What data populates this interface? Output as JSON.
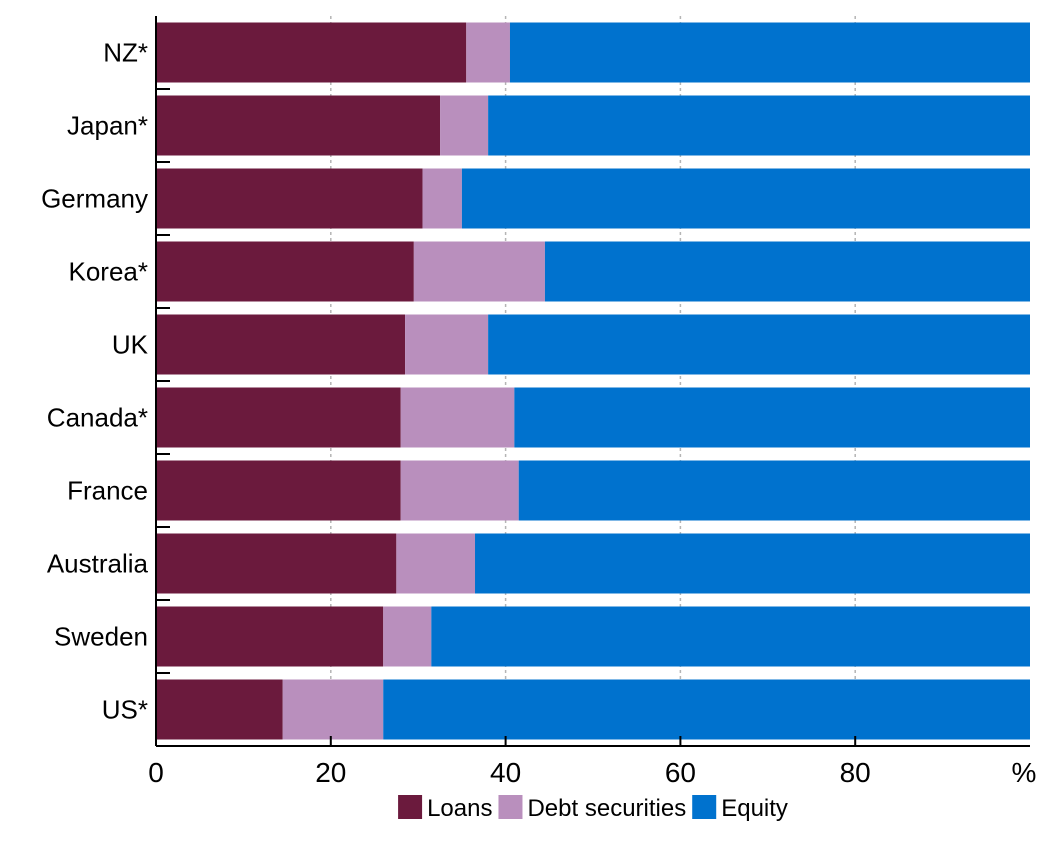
{
  "chart_data": {
    "type": "bar",
    "orientation": "horizontal",
    "stacked": true,
    "title": "",
    "unit": "%",
    "xlim": [
      0,
      100
    ],
    "xticks": [
      0,
      20,
      40,
      60,
      80
    ],
    "grid": true,
    "legend_position": "bottom",
    "categories": [
      "NZ*",
      "Japan*",
      "Germany",
      "Korea*",
      "UK",
      "Canada*",
      "France",
      "Australia",
      "Sweden",
      "US*"
    ],
    "series": [
      {
        "name": "Loans",
        "color": "#6b1a3d",
        "values": [
          35.5,
          32.5,
          30.5,
          29.5,
          28.5,
          28,
          28,
          27.5,
          26,
          14.5
        ]
      },
      {
        "name": "Debt securities",
        "color": "#b98fbd",
        "values": [
          5,
          5.5,
          4.5,
          15,
          9.5,
          13,
          13.5,
          9,
          5.5,
          11.5
        ]
      },
      {
        "name": "Equity",
        "color": "#0072ce",
        "values": [
          59.5,
          62,
          65,
          55.5,
          62,
          59,
          58.5,
          63.5,
          68.5,
          74
        ]
      }
    ]
  }
}
